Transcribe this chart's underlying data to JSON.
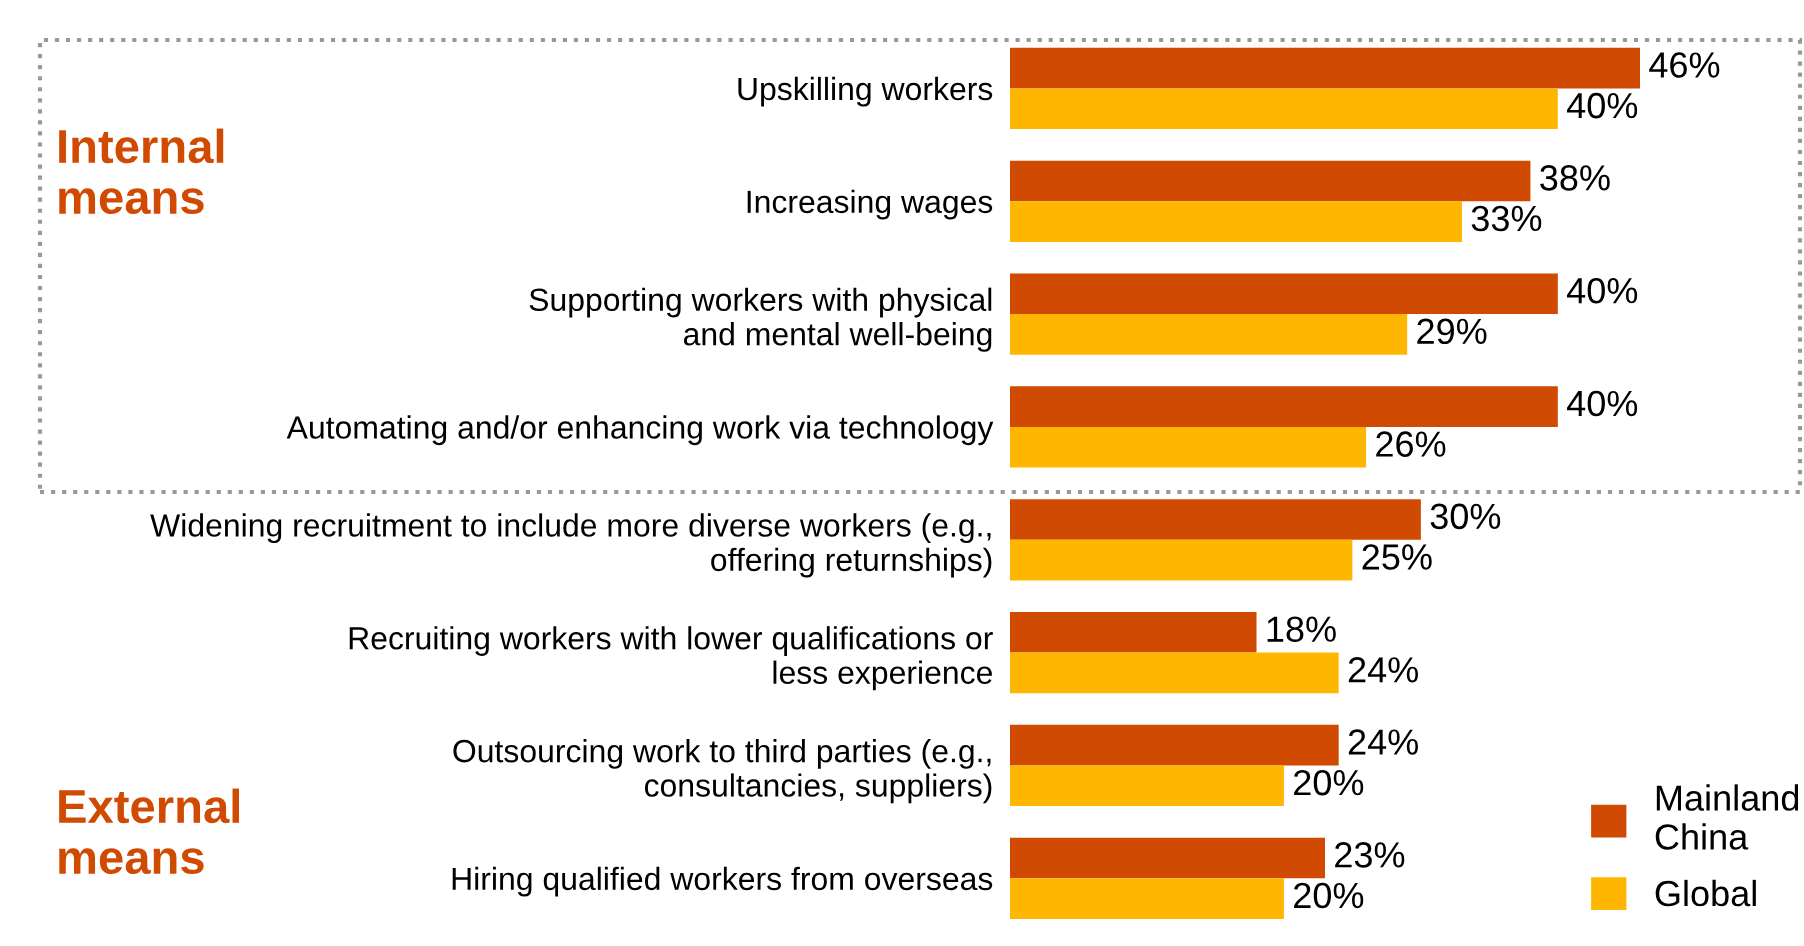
{
  "chart_data": {
    "type": "bar",
    "orientation": "horizontal",
    "categories": [
      "Upskilling workers",
      "Increasing wages",
      "Supporting workers with physical\nand mental well-being",
      "Automating and/or enhancing work via technology",
      "Widening recruitment to include more diverse workers (e.g.,\noffering returnships)",
      "Recruiting workers with lower qualifications or\nless experience",
      "Outsourcing work to third parties (e.g.,\nconsultancies, suppliers)",
      "Hiring qualified workers from overseas"
    ],
    "series": [
      {
        "name": "Mainland\nChina",
        "color": "#d04a02",
        "values": [
          46,
          38,
          40,
          40,
          30,
          18,
          24,
          23
        ],
        "value_labels": [
          "46%",
          "38%",
          "40%",
          "40%",
          "30%",
          "18%",
          "24%",
          "23%"
        ]
      },
      {
        "name": "Global",
        "color": "#ffb600",
        "values": [
          40,
          33,
          29,
          26,
          25,
          24,
          20,
          20
        ],
        "value_labels": [
          "40%",
          "33%",
          "29%",
          "26%",
          "25%",
          "24%",
          "20%",
          "20%"
        ]
      }
    ],
    "annotations": [
      "Internal\nmeans",
      "External\nmeans"
    ],
    "legend": "bottom right",
    "grid": false
  }
}
